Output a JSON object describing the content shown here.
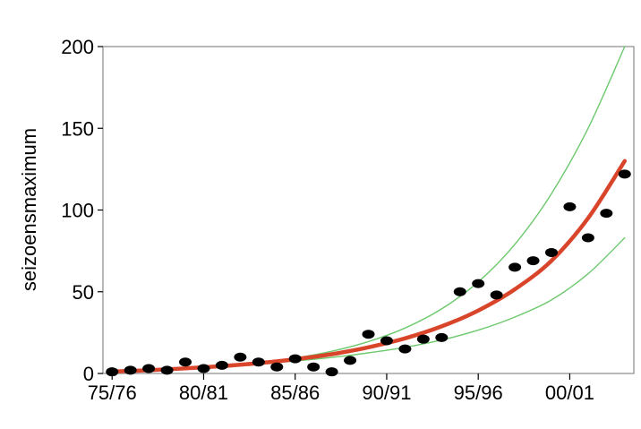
{
  "chart_data": {
    "type": "scatter",
    "title": "",
    "xlabel": "",
    "ylabel": "seizoensmaximum",
    "x_ticks": [
      {
        "x": 0,
        "label": "75/76"
      },
      {
        "x": 5,
        "label": "80/81"
      },
      {
        "x": 10,
        "label": "85/86"
      },
      {
        "x": 15,
        "label": "90/91"
      },
      {
        "x": 20,
        "label": "95/96"
      },
      {
        "x": 25,
        "label": "00/01"
      }
    ],
    "y_ticks": [
      0,
      50,
      100,
      150,
      200
    ],
    "xlim": [
      -0.5,
      28.5
    ],
    "ylim": [
      0,
      200
    ],
    "grid": false,
    "colors": {
      "points": "#000000",
      "fit": "#d9452b",
      "bounds": "#6dc96d"
    },
    "series": [
      {
        "kind": "points",
        "x": [
          0,
          1,
          2,
          3,
          4,
          5,
          6,
          7,
          8,
          9,
          10,
          11,
          12,
          13,
          14,
          15,
          16,
          17,
          18,
          19,
          20,
          21,
          22,
          23,
          24,
          25,
          26,
          27,
          28
        ],
        "y": [
          1,
          2,
          3,
          2,
          7,
          3,
          5,
          10,
          7,
          4,
          9,
          4,
          1,
          8,
          24,
          20,
          15,
          21,
          22,
          50,
          55,
          48,
          65,
          69,
          74,
          102,
          83,
          98,
          122
        ]
      },
      {
        "kind": "fit",
        "x": [
          0,
          2,
          4,
          6,
          8,
          10,
          12,
          14,
          16,
          18,
          20,
          22,
          24,
          26,
          28
        ],
        "y": [
          1.2,
          2.0,
          3.1,
          4.5,
          6.3,
          8.7,
          11.8,
          16.0,
          21.5,
          28.8,
          38.5,
          51.5,
          69.0,
          95.0,
          130.0
        ]
      },
      {
        "kind": "upper",
        "x": [
          0,
          2,
          4,
          6,
          8,
          10,
          12,
          14,
          16,
          18,
          20,
          22,
          24,
          26,
          28
        ],
        "y": [
          1.0,
          1.8,
          3.0,
          4.6,
          6.7,
          9.5,
          13.6,
          19.5,
          27.8,
          39.5,
          56.0,
          79.0,
          110.0,
          150.0,
          200.0
        ]
      },
      {
        "kind": "lower",
        "x": [
          0,
          2,
          4,
          6,
          8,
          10,
          12,
          14,
          16,
          18,
          20,
          22,
          24,
          26,
          28
        ],
        "y": [
          1.5,
          2.2,
          3.3,
          4.4,
          5.8,
          7.6,
          9.8,
          12.6,
          16.0,
          20.5,
          26.5,
          34.5,
          45.0,
          61.0,
          83.0
        ]
      }
    ]
  }
}
